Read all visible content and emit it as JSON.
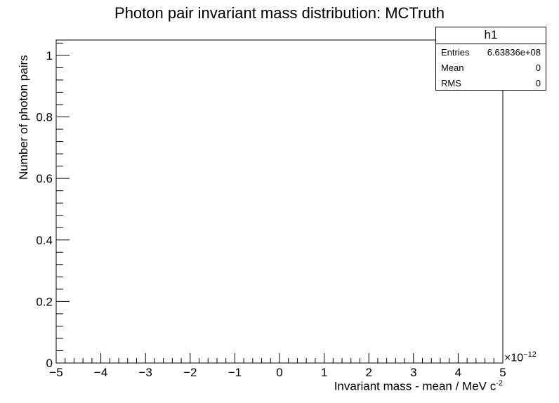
{
  "chart_data": {
    "type": "bar",
    "title": "Photon pair invariant mass distribution: MCTruth",
    "xlabel": "Invariant mass - mean / MeV c",
    "xlabel_sup": "-2",
    "ylabel": "Number of photon pairs",
    "xlim": [
      -5,
      5
    ],
    "ylim": [
      0,
      1.05
    ],
    "x_exponent_base": "×10",
    "x_exponent_power": "−12",
    "x_ticks": [
      "−5",
      "−4",
      "−3",
      "−2",
      "−1",
      "0",
      "1",
      "2",
      "3",
      "4",
      "5"
    ],
    "y_ticks": [
      "0",
      "0.2",
      "0.4",
      "0.6",
      "0.8",
      "1"
    ],
    "values": [],
    "grid": false,
    "stats": {
      "name": "h1",
      "rows": [
        {
          "label": "Entries",
          "value": "6.63836e+08"
        },
        {
          "label": "Mean",
          "value": "0"
        },
        {
          "label": "RMS",
          "value": "0"
        }
      ]
    }
  }
}
